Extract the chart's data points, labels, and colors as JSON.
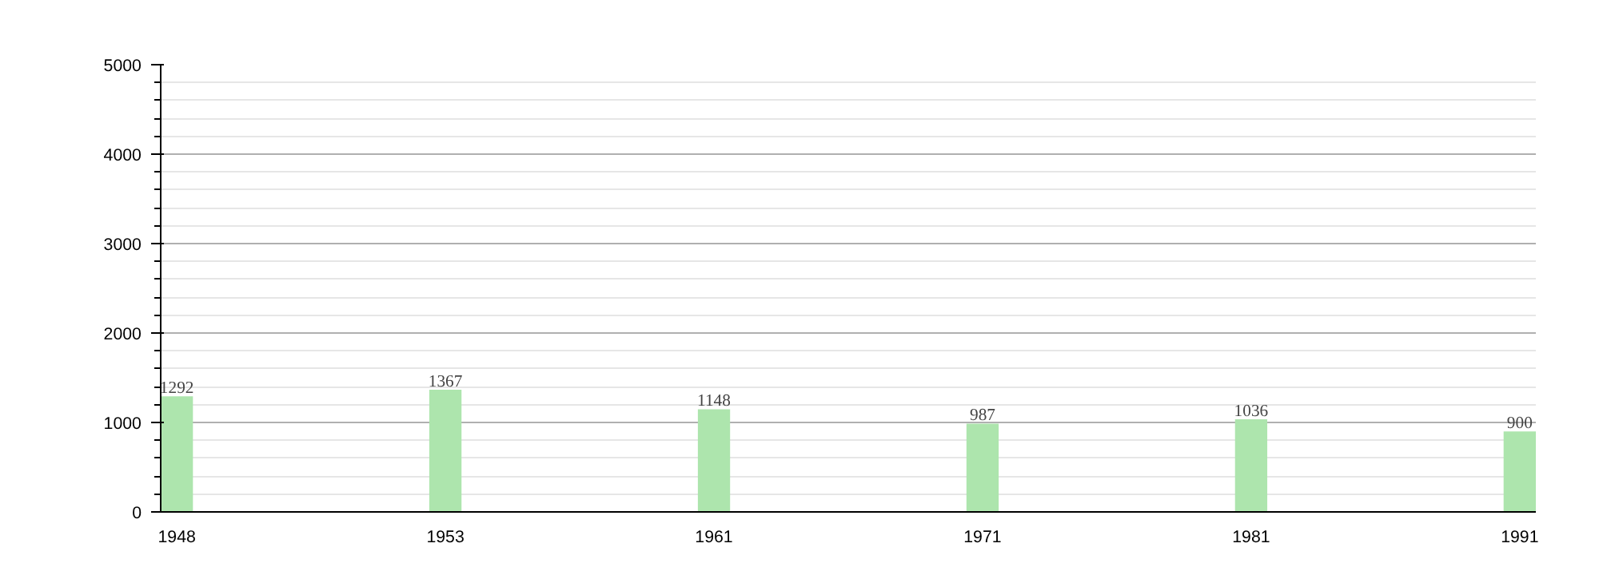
{
  "chart_data": {
    "type": "bar",
    "categories": [
      "1948",
      "1953",
      "1961",
      "1971",
      "1981",
      "1991"
    ],
    "values": [
      1292,
      1367,
      1148,
      987,
      1036,
      900
    ],
    "color": "#ade5ad",
    "ylim": [
      0,
      5000
    ],
    "yticks": [
      0,
      1000,
      2000,
      3000,
      4000,
      5000
    ],
    "grid": true,
    "data_labels": true
  }
}
